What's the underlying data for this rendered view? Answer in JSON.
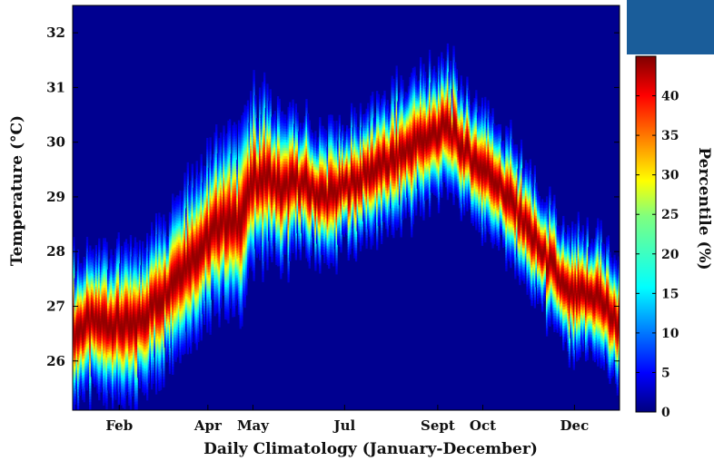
{
  "chart_data": {
    "type": "heatmap",
    "xlabel": "Daily Climatology (January-December)",
    "ylabel": "Temperature (°C)",
    "x_ticks": [
      {
        "label": "Feb",
        "day": 32
      },
      {
        "label": "Apr",
        "day": 91
      },
      {
        "label": "May",
        "day": 121
      },
      {
        "label": "Jul",
        "day": 182
      },
      {
        "label": "Sept",
        "day": 244
      },
      {
        "label": "Oct",
        "day": 274
      },
      {
        "label": "Dec",
        "day": 335
      }
    ],
    "xlim": [
      1,
      365
    ],
    "ylim": [
      25.1,
      32.5
    ],
    "y_ticks": [
      26,
      27,
      28,
      29,
      30,
      31,
      32
    ],
    "colorbar": {
      "label": "Percentile (%)",
      "ticks": [
        0,
        5,
        10,
        15,
        20,
        25,
        30,
        35,
        40
      ],
      "range": [
        0,
        45
      ],
      "colormap": "jet"
    },
    "median_temperature": {
      "day": [
        1,
        10,
        20,
        30,
        40,
        50,
        60,
        70,
        80,
        90,
        100,
        110,
        121,
        130,
        140,
        150,
        160,
        170,
        182,
        190,
        200,
        210,
        220,
        230,
        244,
        250,
        260,
        270,
        280,
        290,
        300,
        310,
        320,
        330,
        340,
        350,
        365
      ],
      "value": [
        26.5,
        26.7,
        26.7,
        26.7,
        26.6,
        26.9,
        27.2,
        27.6,
        27.9,
        28.2,
        28.6,
        28.5,
        29.3,
        29.4,
        29.1,
        29.3,
        29.1,
        29.0,
        29.2,
        29.3,
        29.5,
        29.6,
        29.8,
        30.0,
        30.2,
        30.3,
        29.9,
        29.6,
        29.4,
        29.0,
        28.6,
        28.1,
        27.7,
        27.2,
        27.2,
        27.2,
        26.6
      ]
    },
    "spread_scale": {
      "day": [
        1,
        30,
        60,
        90,
        121,
        150,
        182,
        210,
        244,
        274,
        300,
        335,
        365
      ],
      "width": [
        0.55,
        0.55,
        0.55,
        0.6,
        0.65,
        0.5,
        0.45,
        0.5,
        0.5,
        0.45,
        0.45,
        0.45,
        0.45
      ]
    }
  }
}
